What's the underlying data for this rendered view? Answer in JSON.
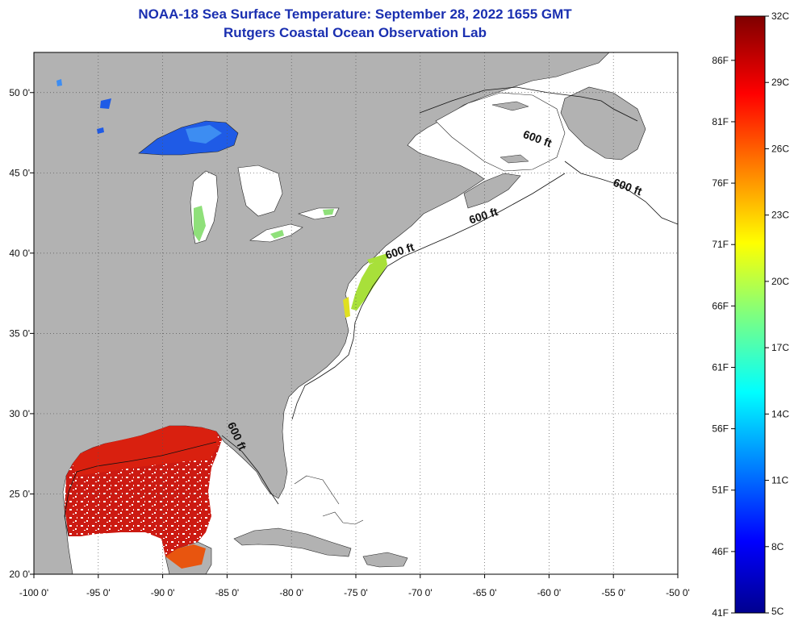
{
  "title": "NOAA-18 Sea Surface Temperature:  September 28, 2022 1655 GMT",
  "subtitle": "Rutgers Coastal Ocean Observation Lab",
  "map": {
    "lon_range": [
      -100,
      -50
    ],
    "lat_range": [
      20,
      52.5
    ],
    "lon_ticks": [
      {
        "value": -100,
        "label": "-100 0'"
      },
      {
        "value": -95,
        "label": "-95 0'"
      },
      {
        "value": -90,
        "label": "-90 0'"
      },
      {
        "value": -85,
        "label": "-85 0'"
      },
      {
        "value": -80,
        "label": "-80 0'"
      },
      {
        "value": -75,
        "label": "-75 0'"
      },
      {
        "value": -70,
        "label": "-70 0'"
      },
      {
        "value": -65,
        "label": "-65 0'"
      },
      {
        "value": -60,
        "label": "-60 0'"
      },
      {
        "value": -55,
        "label": "-55 0'"
      },
      {
        "value": -50,
        "label": "-50 0'"
      }
    ],
    "lat_ticks": [
      {
        "value": 20,
        "label": "20 0'"
      },
      {
        "value": 25,
        "label": "25 0'"
      },
      {
        "value": 30,
        "label": "30 0'"
      },
      {
        "value": 35,
        "label": "35 0'"
      },
      {
        "value": 40,
        "label": "40 0'"
      },
      {
        "value": 45,
        "label": "45 0'"
      },
      {
        "value": 50,
        "label": "50 0'"
      }
    ],
    "contour_labels": [
      {
        "text": "600 ft",
        "lon": -61,
        "lat": 46.9,
        "angle": 20
      },
      {
        "text": "600 ft",
        "lon": -54,
        "lat": 43.9,
        "angle": 20
      },
      {
        "text": "600 ft",
        "lon": -65,
        "lat": 42.1,
        "angle": -18
      },
      {
        "text": "600 ft",
        "lon": -71.5,
        "lat": 39.9,
        "angle": -18
      },
      {
        "text": "600 ft",
        "lon": -84.5,
        "lat": 28.5,
        "angle": 65
      }
    ],
    "land_color": "#b2b2b2",
    "ocean_color": "#ffffff",
    "grid": true
  },
  "colorbar": {
    "celsius": [
      {
        "value": 32,
        "label": "32C"
      },
      {
        "value": 29,
        "label": "29C"
      },
      {
        "value": 26,
        "label": "26C"
      },
      {
        "value": 23,
        "label": "23C"
      },
      {
        "value": 20,
        "label": "20C"
      },
      {
        "value": 17,
        "label": "17C"
      },
      {
        "value": 14,
        "label": "14C"
      },
      {
        "value": 11,
        "label": "11C"
      },
      {
        "value": 8,
        "label": "8C"
      },
      {
        "value": 5,
        "label": "5C"
      }
    ],
    "fahrenheit": [
      {
        "value": 86,
        "label": "86F"
      },
      {
        "value": 81,
        "label": "81F"
      },
      {
        "value": 76,
        "label": "76F"
      },
      {
        "value": 71,
        "label": "71F"
      },
      {
        "value": 66,
        "label": "66F"
      },
      {
        "value": 61,
        "label": "61F"
      },
      {
        "value": 56,
        "label": "56F"
      },
      {
        "value": 51,
        "label": "51F"
      },
      {
        "value": 46,
        "label": "46F"
      },
      {
        "value": 41,
        "label": "41F"
      }
    ],
    "range_c": [
      5,
      32
    ]
  }
}
